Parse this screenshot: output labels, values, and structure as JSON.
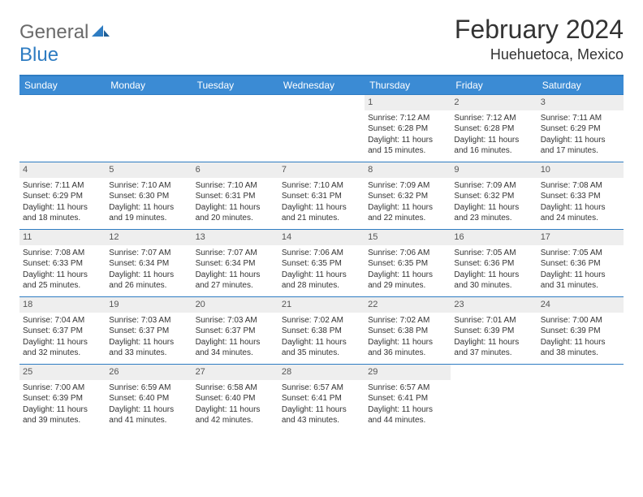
{
  "brand": {
    "general": "General",
    "blue": "Blue"
  },
  "title": "February 2024",
  "location": "Huehuetoca, Mexico",
  "colors": {
    "header_bg": "#3b8bd4",
    "border": "#2e7cc2",
    "daynum_bg": "#eeeeee",
    "text": "#333333"
  },
  "weekdays": [
    "Sunday",
    "Monday",
    "Tuesday",
    "Wednesday",
    "Thursday",
    "Friday",
    "Saturday"
  ],
  "weeks": [
    [
      {
        "n": "",
        "lines": []
      },
      {
        "n": "",
        "lines": []
      },
      {
        "n": "",
        "lines": []
      },
      {
        "n": "",
        "lines": []
      },
      {
        "n": "1",
        "lines": [
          "Sunrise: 7:12 AM",
          "Sunset: 6:28 PM",
          "Daylight: 11 hours and 15 minutes."
        ]
      },
      {
        "n": "2",
        "lines": [
          "Sunrise: 7:12 AM",
          "Sunset: 6:28 PM",
          "Daylight: 11 hours and 16 minutes."
        ]
      },
      {
        "n": "3",
        "lines": [
          "Sunrise: 7:11 AM",
          "Sunset: 6:29 PM",
          "Daylight: 11 hours and 17 minutes."
        ]
      }
    ],
    [
      {
        "n": "4",
        "lines": [
          "Sunrise: 7:11 AM",
          "Sunset: 6:29 PM",
          "Daylight: 11 hours and 18 minutes."
        ]
      },
      {
        "n": "5",
        "lines": [
          "Sunrise: 7:10 AM",
          "Sunset: 6:30 PM",
          "Daylight: 11 hours and 19 minutes."
        ]
      },
      {
        "n": "6",
        "lines": [
          "Sunrise: 7:10 AM",
          "Sunset: 6:31 PM",
          "Daylight: 11 hours and 20 minutes."
        ]
      },
      {
        "n": "7",
        "lines": [
          "Sunrise: 7:10 AM",
          "Sunset: 6:31 PM",
          "Daylight: 11 hours and 21 minutes."
        ]
      },
      {
        "n": "8",
        "lines": [
          "Sunrise: 7:09 AM",
          "Sunset: 6:32 PM",
          "Daylight: 11 hours and 22 minutes."
        ]
      },
      {
        "n": "9",
        "lines": [
          "Sunrise: 7:09 AM",
          "Sunset: 6:32 PM",
          "Daylight: 11 hours and 23 minutes."
        ]
      },
      {
        "n": "10",
        "lines": [
          "Sunrise: 7:08 AM",
          "Sunset: 6:33 PM",
          "Daylight: 11 hours and 24 minutes."
        ]
      }
    ],
    [
      {
        "n": "11",
        "lines": [
          "Sunrise: 7:08 AM",
          "Sunset: 6:33 PM",
          "Daylight: 11 hours and 25 minutes."
        ]
      },
      {
        "n": "12",
        "lines": [
          "Sunrise: 7:07 AM",
          "Sunset: 6:34 PM",
          "Daylight: 11 hours and 26 minutes."
        ]
      },
      {
        "n": "13",
        "lines": [
          "Sunrise: 7:07 AM",
          "Sunset: 6:34 PM",
          "Daylight: 11 hours and 27 minutes."
        ]
      },
      {
        "n": "14",
        "lines": [
          "Sunrise: 7:06 AM",
          "Sunset: 6:35 PM",
          "Daylight: 11 hours and 28 minutes."
        ]
      },
      {
        "n": "15",
        "lines": [
          "Sunrise: 7:06 AM",
          "Sunset: 6:35 PM",
          "Daylight: 11 hours and 29 minutes."
        ]
      },
      {
        "n": "16",
        "lines": [
          "Sunrise: 7:05 AM",
          "Sunset: 6:36 PM",
          "Daylight: 11 hours and 30 minutes."
        ]
      },
      {
        "n": "17",
        "lines": [
          "Sunrise: 7:05 AM",
          "Sunset: 6:36 PM",
          "Daylight: 11 hours and 31 minutes."
        ]
      }
    ],
    [
      {
        "n": "18",
        "lines": [
          "Sunrise: 7:04 AM",
          "Sunset: 6:37 PM",
          "Daylight: 11 hours and 32 minutes."
        ]
      },
      {
        "n": "19",
        "lines": [
          "Sunrise: 7:03 AM",
          "Sunset: 6:37 PM",
          "Daylight: 11 hours and 33 minutes."
        ]
      },
      {
        "n": "20",
        "lines": [
          "Sunrise: 7:03 AM",
          "Sunset: 6:37 PM",
          "Daylight: 11 hours and 34 minutes."
        ]
      },
      {
        "n": "21",
        "lines": [
          "Sunrise: 7:02 AM",
          "Sunset: 6:38 PM",
          "Daylight: 11 hours and 35 minutes."
        ]
      },
      {
        "n": "22",
        "lines": [
          "Sunrise: 7:02 AM",
          "Sunset: 6:38 PM",
          "Daylight: 11 hours and 36 minutes."
        ]
      },
      {
        "n": "23",
        "lines": [
          "Sunrise: 7:01 AM",
          "Sunset: 6:39 PM",
          "Daylight: 11 hours and 37 minutes."
        ]
      },
      {
        "n": "24",
        "lines": [
          "Sunrise: 7:00 AM",
          "Sunset: 6:39 PM",
          "Daylight: 11 hours and 38 minutes."
        ]
      }
    ],
    [
      {
        "n": "25",
        "lines": [
          "Sunrise: 7:00 AM",
          "Sunset: 6:39 PM",
          "Daylight: 11 hours and 39 minutes."
        ]
      },
      {
        "n": "26",
        "lines": [
          "Sunrise: 6:59 AM",
          "Sunset: 6:40 PM",
          "Daylight: 11 hours and 41 minutes."
        ]
      },
      {
        "n": "27",
        "lines": [
          "Sunrise: 6:58 AM",
          "Sunset: 6:40 PM",
          "Daylight: 11 hours and 42 minutes."
        ]
      },
      {
        "n": "28",
        "lines": [
          "Sunrise: 6:57 AM",
          "Sunset: 6:41 PM",
          "Daylight: 11 hours and 43 minutes."
        ]
      },
      {
        "n": "29",
        "lines": [
          "Sunrise: 6:57 AM",
          "Sunset: 6:41 PM",
          "Daylight: 11 hours and 44 minutes."
        ]
      },
      {
        "n": "",
        "lines": []
      },
      {
        "n": "",
        "lines": []
      }
    ]
  ]
}
